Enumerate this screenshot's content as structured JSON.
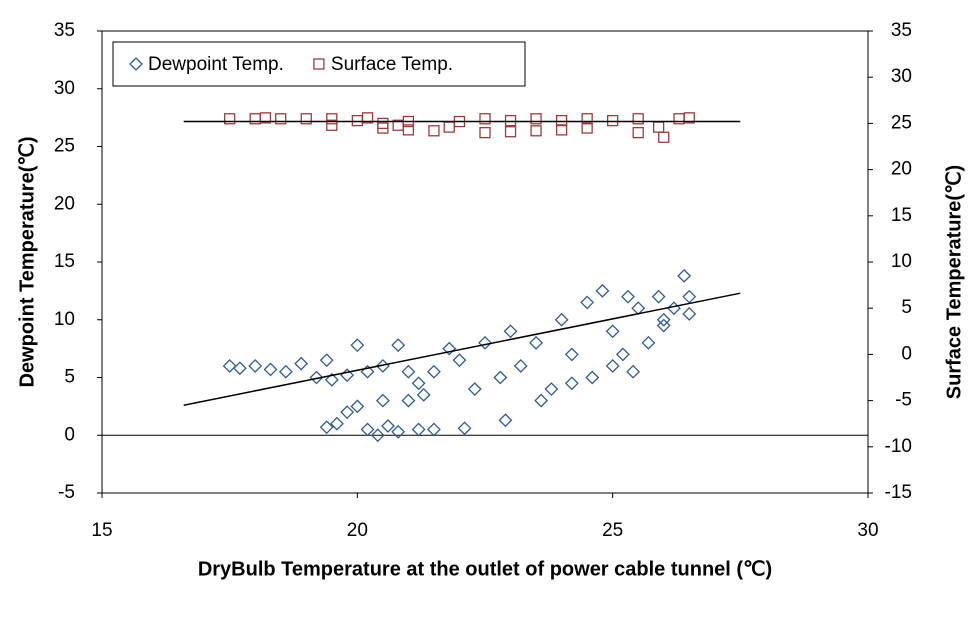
{
  "chart_data": {
    "type": "scatter",
    "xlabel": "DryBulb Temperature at the outlet of power cable tunnel (℃)",
    "ylabel": "Dewpoint Temperature(℃)",
    "y2label": "Surface Temperature(℃)",
    "xlim": [
      15,
      30
    ],
    "xticks": [
      15,
      20,
      25,
      30
    ],
    "ylim": [
      -5,
      35
    ],
    "yticks": [
      -5,
      0,
      5,
      10,
      15,
      20,
      25,
      30,
      35
    ],
    "y2lim": [
      -15,
      35
    ],
    "y2ticks": [
      -15,
      -10,
      -5,
      0,
      5,
      10,
      15,
      20,
      25,
      30,
      35
    ],
    "legend": "upper left",
    "series": [
      {
        "name": "Dewpoint Temp.",
        "color": "#2f5b94",
        "marker": "diamond",
        "axis": "y",
        "x": [
          17.5,
          17.7,
          18,
          18.3,
          18.6,
          18.9,
          19.2,
          19.4,
          19.5,
          19.8,
          20,
          20.2,
          20.5,
          20.8,
          21,
          21.2,
          21.5,
          21.8,
          22,
          22.3,
          22.5,
          22.8,
          23,
          23.2,
          23.5,
          23.8,
          24,
          24.2,
          24.5,
          24.6,
          24.8,
          25,
          25.2,
          25.3,
          25.5,
          25.7,
          25.9,
          26,
          26.2,
          26.4,
          26.5,
          26.5,
          19.4,
          19.6,
          19.8,
          20,
          20.2,
          20.4,
          20.6,
          20.8,
          21,
          21.2,
          21.5,
          22.1,
          22.9,
          20.5,
          21.3,
          23.6,
          24.2,
          25,
          25.4,
          26
        ],
        "values": [
          6,
          5.8,
          6,
          5.7,
          5.5,
          6.2,
          5,
          6.5,
          4.8,
          5.2,
          7.8,
          5.5,
          6,
          7.8,
          5.5,
          4.5,
          5.5,
          7.5,
          6.5,
          4,
          8,
          5,
          9,
          6,
          8,
          4,
          10,
          7,
          11.5,
          5,
          12.5,
          9,
          7,
          12,
          11,
          8,
          12,
          10,
          11,
          13.8,
          12,
          10.5,
          0.7,
          1,
          2,
          2.5,
          0.5,
          0,
          0.8,
          0.3,
          3,
          0.5,
          0.5,
          0.6,
          1.3,
          3,
          3.5,
          3,
          4.5,
          6,
          5.5,
          9.5
        ]
      },
      {
        "name": "Surface Temp.",
        "color": "#a0393b",
        "marker": "square",
        "axis": "y2",
        "x": [
          17.5,
          18,
          18.5,
          19,
          19.5,
          20,
          20.5,
          21,
          21.5,
          22,
          22.5,
          23,
          23.5,
          24,
          24.5,
          25,
          25.5,
          26,
          26.3,
          26.5,
          19.5,
          20.5,
          21,
          21.8,
          22.5,
          23.5,
          24.5,
          25.5,
          25.9,
          20.2,
          18.2,
          20.8,
          23,
          24
        ],
        "values": [
          25.5,
          25.5,
          25.5,
          25.5,
          25.5,
          25.3,
          25,
          25.2,
          24.2,
          25.2,
          24,
          25.3,
          24.2,
          25.3,
          24.5,
          25.3,
          24,
          23.5,
          25.5,
          25.6,
          24.8,
          24.5,
          24.3,
          24.6,
          25.5,
          25.5,
          25.5,
          25.5,
          24.6,
          25.6,
          25.6,
          24.8,
          24.1,
          24.3
        ]
      }
    ],
    "trendlines": [
      {
        "axis": "y",
        "color": "#000000",
        "x": [
          16.6,
          27.5
        ],
        "values": [
          2.6,
          12.3
        ]
      },
      {
        "axis": "y2",
        "color": "#000000",
        "x": [
          16.6,
          27.5
        ],
        "values": [
          25.2,
          25.2
        ]
      }
    ]
  }
}
